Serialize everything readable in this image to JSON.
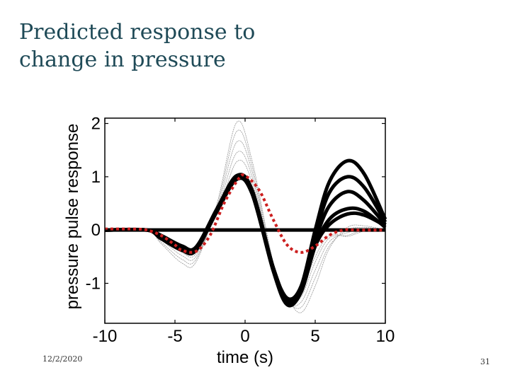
{
  "slide": {
    "title_line1": "Predicted response to",
    "title_line2": "change in pressure",
    "date": "12/2/2020",
    "page_number": "31"
  },
  "colors": {
    "title": "#1f4a57",
    "main_curves": "#000000",
    "faint_curves": "#9a9a9a",
    "predicted": "#cc1f1f"
  },
  "chart_data": {
    "type": "line",
    "title": "",
    "xlabel": "time (s)",
    "ylabel": "pressure pulse response",
    "xlim": [
      -10,
      10
    ],
    "ylim": [
      -1.75,
      2.1
    ],
    "xticks": [
      -10,
      -5,
      0,
      5,
      10
    ],
    "xtick_labels": [
      "-10",
      "-5",
      "0",
      "5",
      "10"
    ],
    "yticks": [
      -1,
      0,
      1,
      2
    ],
    "ytick_labels": [
      "-1",
      "0",
      "1",
      "2"
    ],
    "grid": false,
    "series": [
      {
        "name": "baseline",
        "style": "thick-black",
        "x": [
          -10,
          10
        ],
        "y": [
          0,
          0
        ]
      },
      {
        "name": "response 1",
        "style": "thick-black",
        "x": [
          -10,
          -7,
          -6,
          -4.5,
          -3.5,
          -2,
          -0.6,
          0.5,
          2,
          3,
          4,
          5,
          6,
          7.3,
          8.5,
          10
        ],
        "y": [
          0,
          0,
          -0.1,
          -0.3,
          -0.32,
          0.4,
          1.02,
          0.75,
          -0.7,
          -1.28,
          -1.05,
          0,
          0.9,
          1.3,
          1.05,
          0.2
        ]
      },
      {
        "name": "response 2",
        "style": "thick-black",
        "x": [
          -10,
          -7,
          -6,
          -4.5,
          -3.5,
          -2,
          -0.6,
          0.5,
          2,
          3,
          4,
          5,
          6,
          7.3,
          8.5,
          10
        ],
        "y": [
          0,
          0,
          -0.12,
          -0.33,
          -0.34,
          0.4,
          1.0,
          0.73,
          -0.72,
          -1.32,
          -1.08,
          -0.1,
          0.7,
          1.0,
          0.8,
          0.15
        ]
      },
      {
        "name": "response 3",
        "style": "thick-black",
        "x": [
          -10,
          -7,
          -6,
          -4.5,
          -3.5,
          -2,
          -0.6,
          0.5,
          2,
          3,
          4,
          5,
          6,
          7.3,
          8.5,
          10
        ],
        "y": [
          0,
          0,
          -0.14,
          -0.36,
          -0.36,
          0.38,
          0.98,
          0.7,
          -0.74,
          -1.36,
          -1.12,
          -0.2,
          0.45,
          0.72,
          0.55,
          0.1
        ]
      },
      {
        "name": "response 4",
        "style": "thick-black",
        "x": [
          -10,
          -7,
          -6,
          -4.5,
          -3.5,
          -2,
          -0.6,
          0.5,
          2,
          3,
          4,
          5,
          6,
          7.3,
          8.5,
          10
        ],
        "y": [
          0,
          0,
          -0.16,
          -0.38,
          -0.38,
          0.37,
          0.96,
          0.68,
          -0.76,
          -1.4,
          -1.16,
          -0.3,
          0.2,
          0.4,
          0.35,
          0.05
        ]
      },
      {
        "name": "response 5",
        "style": "thick-black",
        "x": [
          -10,
          -7,
          -6,
          -4.5,
          -3.5,
          -2,
          -0.6,
          0.5,
          2,
          3,
          4,
          5,
          6,
          7.3,
          8.5,
          10
        ],
        "y": [
          0,
          0,
          -0.12,
          -0.34,
          -0.35,
          0.35,
          0.95,
          0.7,
          -0.7,
          -1.3,
          -1.1,
          -0.3,
          0.1,
          0.3,
          0.28,
          0.08
        ]
      },
      {
        "name": "faint 1",
        "style": "faint-gray",
        "x": [
          -10,
          -7,
          -6,
          -4.5,
          -3.5,
          -2,
          -0.6,
          0.5,
          2,
          3,
          4,
          5,
          6,
          7.3,
          8.5,
          10
        ],
        "y": [
          0,
          0,
          -0.25,
          -0.62,
          -0.6,
          0.5,
          2.02,
          1.3,
          -0.6,
          -1.25,
          -1.55,
          -1.05,
          -0.35,
          0.05,
          0.08,
          0.0
        ]
      },
      {
        "name": "faint 2",
        "style": "faint-gray",
        "x": [
          -10,
          -7,
          -6,
          -4.5,
          -3.5,
          -2,
          -0.6,
          0.5,
          2,
          3,
          4,
          5,
          6,
          7.3,
          8.5,
          10
        ],
        "y": [
          0,
          0,
          -0.22,
          -0.55,
          -0.55,
          0.45,
          1.85,
          1.2,
          -0.65,
          -1.3,
          -1.45,
          -0.9,
          -0.3,
          0.0,
          0.05,
          0.0
        ]
      },
      {
        "name": "faint 3",
        "style": "faint-gray",
        "x": [
          -10,
          -7,
          -6,
          -4.5,
          -3.5,
          -2,
          -0.6,
          0.5,
          2,
          3,
          4,
          5,
          6,
          7.3,
          8.5,
          10
        ],
        "y": [
          0,
          0,
          -0.18,
          -0.48,
          -0.5,
          0.4,
          1.65,
          1.1,
          -0.7,
          -1.35,
          -1.35,
          -0.75,
          -0.22,
          -0.05,
          0.02,
          0.0
        ]
      },
      {
        "name": "faint 4",
        "style": "faint-gray",
        "x": [
          -10,
          -7,
          -6,
          -4.5,
          -3.5,
          -2,
          -0.6,
          0.5,
          2,
          3,
          4,
          5,
          6,
          7.3,
          8.5,
          10
        ],
        "y": [
          0,
          0,
          -0.15,
          -0.42,
          -0.45,
          0.35,
          1.45,
          1.0,
          -0.72,
          -1.38,
          -1.25,
          -0.6,
          -0.15,
          -0.1,
          0.0,
          0.0
        ]
      },
      {
        "name": "faint 5",
        "style": "faint-gray",
        "x": [
          -10,
          -7,
          -6,
          -4.5,
          -3.5,
          -2,
          -0.6,
          0.5,
          2,
          3,
          4,
          5,
          6,
          7.3,
          8.5,
          10
        ],
        "y": [
          0,
          0,
          -0.12,
          -0.38,
          -0.4,
          0.3,
          1.28,
          0.9,
          -0.74,
          -1.4,
          -1.15,
          -0.5,
          -0.1,
          -0.12,
          -0.02,
          0.0
        ]
      },
      {
        "name": "predicted",
        "style": "dotted-red",
        "x": [
          -10,
          -8,
          -7,
          -6,
          -5,
          -4.5,
          -3.5,
          -2.5,
          -1.5,
          -0.5,
          0,
          1,
          2,
          3,
          4,
          5,
          6,
          7,
          8,
          10
        ],
        "y": [
          0.02,
          0.02,
          0.0,
          -0.1,
          -0.28,
          -0.38,
          -0.4,
          -0.1,
          0.5,
          0.95,
          1.02,
          0.75,
          0.2,
          -0.28,
          -0.42,
          -0.3,
          -0.1,
          0.0,
          0.0,
          0.0
        ]
      }
    ]
  }
}
